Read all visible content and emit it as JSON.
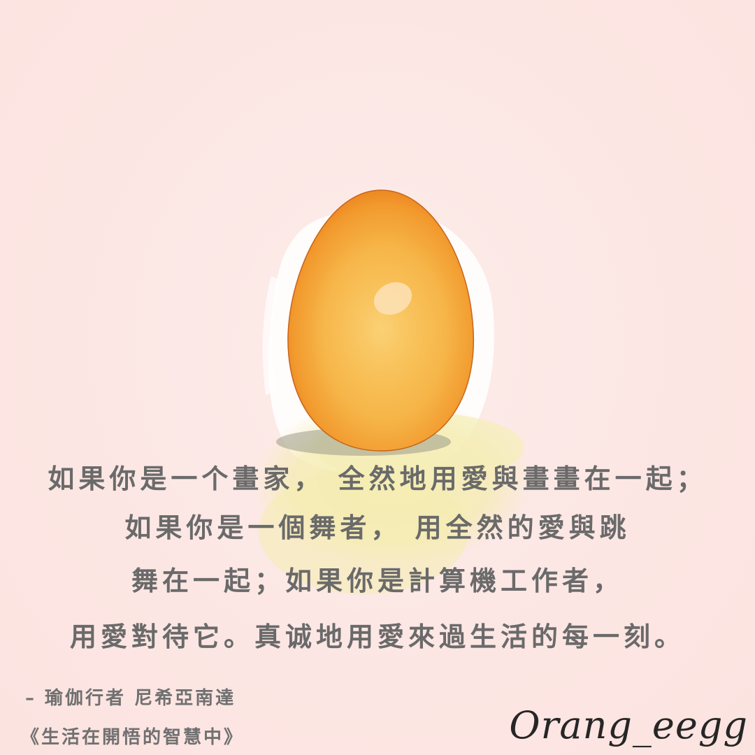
{
  "quote": {
    "line1": "如果你是一个畫家， 全然地用愛與畫畫在一起；",
    "line2": "如果你是一個舞者， 用全然的愛與跳",
    "line3": "舞在一起；如果你是計算機工作者，",
    "line4": "用愛對待它。真诚地用愛來過生活的每一刻。"
  },
  "attribution": {
    "author": "– 瑜伽行者 尼希亞南達",
    "book": "《生活在開悟的智慧中》"
  },
  "signature": "Orang_eegg",
  "colors": {
    "background": "#fde8e5",
    "egg_orange": "#f08a24",
    "egg_yellow": "#f7c153",
    "shadow_yellow": "#f4ecb0",
    "text": "#6a6a6a"
  }
}
